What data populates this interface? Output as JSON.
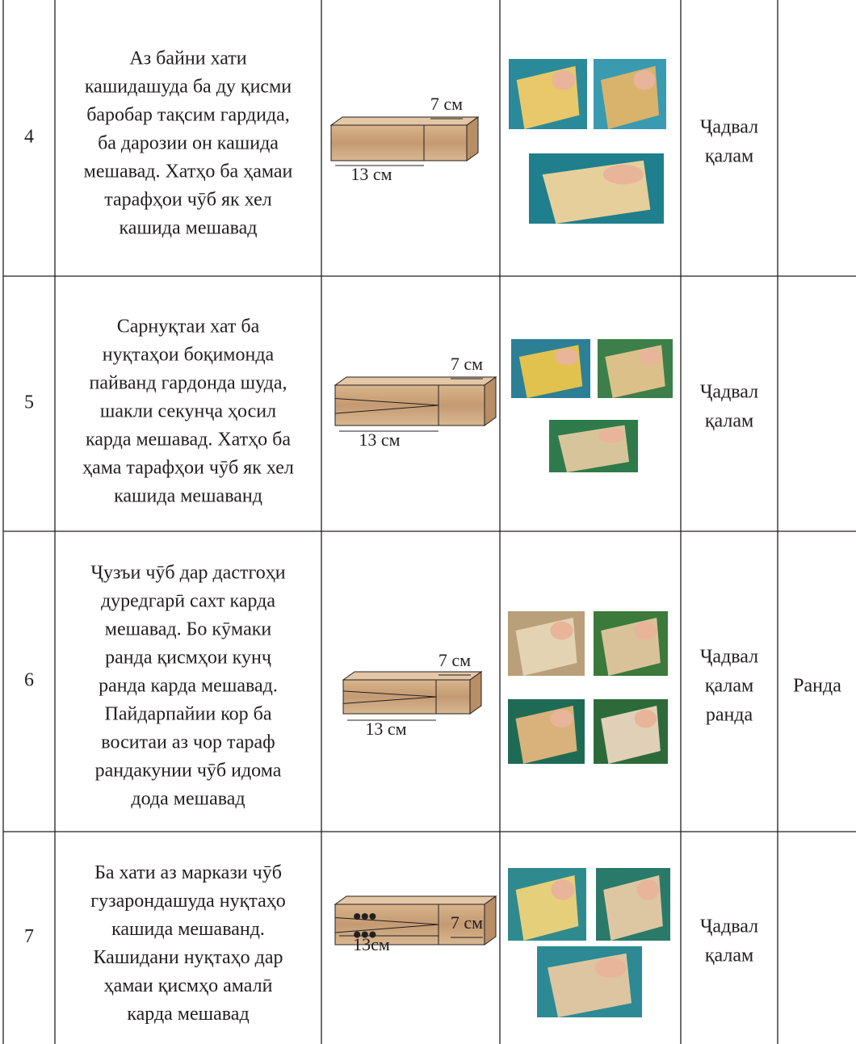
{
  "table": {
    "rows": [
      {
        "number": "4",
        "description": [
          "Аз байни хати",
          "кашидашуда ба ду қисми",
          "баробар тақсим гардида,",
          "ба дарозии он кашида",
          "мешавад. Хатҳо ба ҳамаи",
          "тарафҳои чӯб як хел",
          "кашида мешавад"
        ],
        "diagram": {
          "width_label": "7 см",
          "length_label": "13 см"
        },
        "tools": [
          "Ҷадвал",
          "қалам"
        ]
      },
      {
        "number": "5",
        "description": [
          "Сарнуқтаи хат ба",
          "нуқтаҳои боқимонда",
          "пайванд гардонда шуда,",
          "шакли секунҷа ҳосил",
          "карда мешавад. Хатҳо ба",
          "ҳама тарафҳои чӯб як хел",
          "кашида мешаванд"
        ],
        "diagram": {
          "width_label": "7 см",
          "length_label": "13 см"
        },
        "tools": [
          "Ҷадвал",
          "қалам"
        ]
      },
      {
        "number": "6",
        "description": [
          "Ҷузъи чӯб дар дастгоҳи",
          "дуредгарӣ сахт карда",
          "мешавад. Бо кӯмаки",
          "ранда қисмҳои кунҷ",
          "ранда карда мешавад.",
          "Пайдарпайии кор ба",
          "воситаи аз чор тараф",
          "рандакунии чӯб идома",
          "дода мешавад"
        ],
        "diagram": {
          "width_label": "7 см",
          "length_label": "13 см"
        },
        "tools": [
          "Ҷадвал",
          "қалам",
          "ранда"
        ],
        "extra": [
          "Ранда"
        ]
      },
      {
        "number": "7",
        "description": [
          "Ба хати аз маркази чӯб",
          "гузарондашуда нуқтаҳо",
          "кашида мешаванд.",
          "Кашидани нуқтаҳо дар",
          "ҳамаи қисмҳо амалӣ",
          "карда мешавад"
        ],
        "diagram": {
          "width_label": "7 см",
          "length_label": "13см"
        },
        "tools": [
          "Ҷадвал",
          "қалам"
        ]
      }
    ]
  }
}
